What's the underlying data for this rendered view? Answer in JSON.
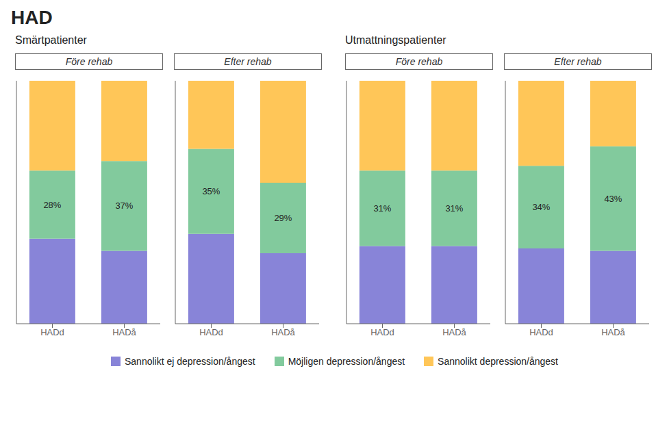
{
  "title": "HAD",
  "chart_data": [
    {
      "type": "bar",
      "stacked": true,
      "title": "Före rehab",
      "subtitle": "Smärtpatienter",
      "categories": [
        "HADd",
        "HADå"
      ],
      "ylim": [
        0,
        100
      ],
      "tick_labels": "x",
      "grid": false,
      "legend": "bottom",
      "series": [
        {
          "name": "Sannolikt ej depression/ångest",
          "color": "#8884d8",
          "values": [
            35,
            30
          ]
        },
        {
          "name": "Möjligen depression/ångest",
          "color": "#82ca9d",
          "values": [
            28,
            37
          ],
          "data_labels": true,
          "value_labels": [
            "28%",
            "37%"
          ]
        },
        {
          "name": "Sannolikt depression/ångest",
          "color": "#ffc658",
          "values": [
            37,
            33
          ]
        }
      ]
    },
    {
      "type": "bar",
      "stacked": true,
      "title": "Efter rehab",
      "categories": [
        "HADd",
        "HADå"
      ],
      "ylim": [
        0,
        100
      ],
      "tick_labels": "x",
      "grid": false,
      "legend": "bottom",
      "series": [
        {
          "name": "Sannolikt ej depression/ångest",
          "color": "#8884d8",
          "values": [
            37,
            29
          ]
        },
        {
          "name": "Möjligen depression/ångest",
          "color": "#82ca9d",
          "values": [
            35,
            29
          ],
          "data_labels": true,
          "value_labels": [
            "35%",
            "29%"
          ]
        },
        {
          "name": "Sannolikt depression/ångest",
          "color": "#ffc658",
          "values": [
            28,
            42
          ]
        }
      ]
    },
    {
      "type": "bar",
      "stacked": true,
      "title": "Före rehab",
      "subtitle": "Utmattningspatienter",
      "categories": [
        "HADd",
        "HADå"
      ],
      "ylim": [
        0,
        100
      ],
      "tick_labels": "x",
      "grid": false,
      "legend": "bottom",
      "series": [
        {
          "name": "Sannolikt ej depression/ångest",
          "color": "#8884d8",
          "values": [
            32,
            32
          ]
        },
        {
          "name": "Möjligen depression/ångest",
          "color": "#82ca9d",
          "values": [
            31,
            31
          ],
          "data_labels": true,
          "value_labels": [
            "31%",
            "31%"
          ]
        },
        {
          "name": "Sannolikt depression/ångest",
          "color": "#ffc658",
          "values": [
            37,
            37
          ]
        }
      ]
    },
    {
      "type": "bar",
      "stacked": true,
      "title": "Efter rehab",
      "categories": [
        "HADd",
        "HADå"
      ],
      "ylim": [
        0,
        100
      ],
      "tick_labels": "x",
      "grid": false,
      "legend": "bottom",
      "series": [
        {
          "name": "Sannolikt ej depression/ångest",
          "color": "#8884d8",
          "values": [
            31,
            30
          ]
        },
        {
          "name": "Möjligen depression/ångest",
          "color": "#82ca9d",
          "values": [
            34,
            43
          ],
          "data_labels": true,
          "value_labels": [
            "34%",
            "43%"
          ]
        },
        {
          "name": "Sannolikt depression/ångest",
          "color": "#ffc658",
          "values": [
            35,
            27
          ]
        }
      ]
    }
  ]
}
